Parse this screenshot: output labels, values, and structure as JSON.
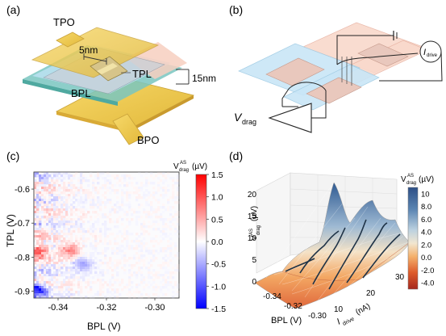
{
  "panels": {
    "a": {
      "label": "(a)",
      "tpo": "TPO",
      "bpo": "BPO",
      "tpl": "TPL",
      "bpl": "BPL",
      "gap": "5nm",
      "thickness": "15nm"
    },
    "b": {
      "label": "(b)",
      "vdrag_main": "V",
      "vdrag_sub": "drag",
      "idrive_main": "I",
      "idrive_sub": "drive"
    },
    "c": {
      "label": "(c)",
      "colorbar_title_main": "V",
      "colorbar_title_sup": "AS",
      "colorbar_title_sub": "drag",
      "colorbar_title_unit": "(µV)",
      "colorbar_ticks": [
        "1.5",
        "1.0",
        "0.5",
        "0.0",
        "-0.5",
        "-1.0",
        "-1.5"
      ]
    },
    "d": {
      "label": "(d)",
      "colorbar_title_main": "V",
      "colorbar_title_sup": "AS",
      "colorbar_title_sub": "drag",
      "colorbar_title_unit": "(µV)",
      "colorbar_ticks": [
        "10",
        "8.0",
        "6.0",
        "4.0",
        "2.0",
        "0.0",
        "-2.0",
        "-4.0"
      ],
      "z_ticks": [
        "20",
        "15",
        "10",
        "5",
        "0"
      ],
      "z_label_main": "V",
      "z_label_sup": "AS",
      "z_label_sub": "drag",
      "z_label_unit": "(µV)",
      "x_ticks": [
        "-0.34",
        "-0.32",
        "-0.30"
      ],
      "x_label": "BPL (V)",
      "y_ticks": [
        "10",
        "20",
        "30"
      ],
      "y_label_main": "I",
      "y_label_sub": "drive",
      "y_label_unit": "(nA)"
    }
  },
  "chart_data": {
    "type": "heatmap",
    "xlabel": "BPL (V)",
    "ylabel": "TPL (V)",
    "x_ticks": [
      "-0.34",
      "-0.32",
      "-0.30"
    ],
    "y_ticks": [
      "-0.6",
      "-0.7",
      "-0.8",
      "-0.9"
    ],
    "xlim": [
      -0.35,
      -0.29
    ],
    "ylim": [
      -0.92,
      -0.55
    ],
    "colorbar_label": "V_drag^AS (µV)",
    "colorbar_range": [
      -1.5,
      1.5
    ],
    "colors": {
      "high": "#ff0000",
      "mid": "#ffffff",
      "low": "#0000ff"
    },
    "notable_features": [
      {
        "x": -0.349,
        "y": -0.895,
        "value": -1.5
      },
      {
        "x": -0.335,
        "y": -0.78,
        "value": 0.8
      },
      {
        "x": -0.348,
        "y": -0.78,
        "value": 0.9
      },
      {
        "x": -0.33,
        "y": -0.82,
        "value": -0.6
      }
    ]
  }
}
